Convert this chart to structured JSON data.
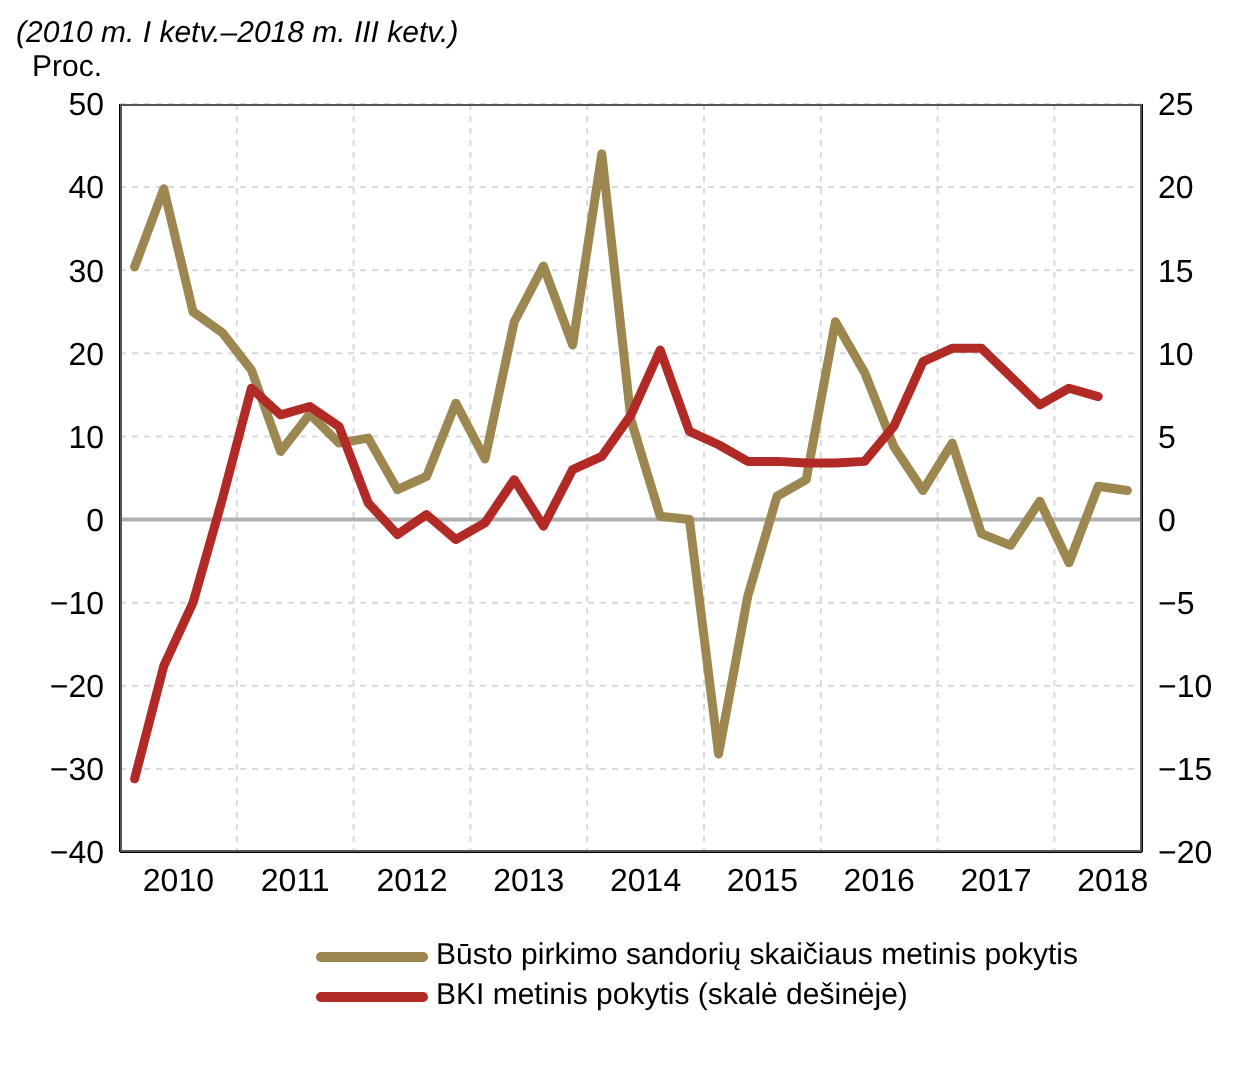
{
  "chart_data": {
    "type": "line",
    "title": "(2010 m. I ketv.–2018 m. III ketv.)",
    "ylabel": "Proc.",
    "x": [
      2010.125,
      2010.375,
      2010.625,
      2010.875,
      2011.125,
      2011.375,
      2011.625,
      2011.875,
      2012.125,
      2012.375,
      2012.625,
      2012.875,
      2013.125,
      2013.375,
      2013.625,
      2013.875,
      2014.125,
      2014.375,
      2014.625,
      2014.875,
      2015.125,
      2015.375,
      2015.625,
      2015.875,
      2016.125,
      2016.375,
      2016.625,
      2016.875,
      2017.125,
      2017.375,
      2017.625,
      2017.875,
      2018.125,
      2018.375,
      2018.625
    ],
    "series": [
      {
        "name": "Būsto pirkimo sandorių skaičiaus metinis pokytis",
        "color": "#9c8750",
        "values": [
          30.4,
          39.8,
          25,
          22.5,
          18,
          8.2,
          12.7,
          9.2,
          9.8,
          3.6,
          5.2,
          14,
          7.3,
          23.8,
          30.5,
          21,
          44,
          12,
          0.4,
          0,
          -28.2,
          -9.2,
          2.8,
          4.8,
          23.8,
          17.7,
          8.8,
          3.5,
          9.2,
          -1.7,
          -3.1,
          2.2,
          -5.2,
          4,
          3.5
        ]
      },
      {
        "name": "BKI metinis pokytis (skalė dešinėje)",
        "color": "#b22a25",
        "axis": "y2",
        "values": [
          -15.6,
          -8.8,
          -5,
          1.2,
          7.9,
          6.3,
          6.8,
          5.6,
          1,
          -0.9,
          0.3,
          -1.2,
          -0.2,
          2.4,
          -0.4,
          3,
          3.8,
          6.3,
          10.2,
          5.3,
          4.5,
          3.5,
          3.5,
          3.4,
          3.4,
          3.5,
          5.6,
          9.5,
          10.3,
          10.3,
          8.6,
          6.9,
          7.9,
          7.4,
          null
        ]
      }
    ],
    "xlim": [
      2010,
      2018.75
    ],
    "xticks": [
      {
        "value": 2010.5,
        "label": "2010"
      },
      {
        "value": 2011,
        "label": null
      },
      {
        "value": 2011.5,
        "label": "2011"
      },
      {
        "value": 2012,
        "label": null
      },
      {
        "value": 2012.5,
        "label": "2012"
      },
      {
        "value": 2013,
        "label": null
      },
      {
        "value": 2013.5,
        "label": "2013"
      },
      {
        "value": 2014,
        "label": null
      },
      {
        "value": 2014.5,
        "label": "2014"
      },
      {
        "value": 2015,
        "label": null
      },
      {
        "value": 2015.5,
        "label": "2015"
      },
      {
        "value": 2016,
        "label": null
      },
      {
        "value": 2016.5,
        "label": "2016"
      },
      {
        "value": 2017,
        "label": null
      },
      {
        "value": 2017.5,
        "label": "2017"
      },
      {
        "value": 2018,
        "label": null
      },
      {
        "value": 2018.5,
        "label": "2018"
      }
    ],
    "ylim": [
      -40,
      50
    ],
    "yticks": [
      {
        "value": -40,
        "label": "−40"
      },
      {
        "value": -30,
        "label": "−30"
      },
      {
        "value": -20,
        "label": "−20"
      },
      {
        "value": -10,
        "label": "−10"
      },
      0,
      10,
      20,
      30,
      40,
      50
    ],
    "y2lim": [
      -20,
      25
    ],
    "y2ticks": [
      {
        "value": -20,
        "label": "−20"
      },
      {
        "value": -15,
        "label": "−15"
      },
      {
        "value": -10,
        "label": "−10"
      },
      {
        "value": -5,
        "label": "−5"
      },
      0,
      5,
      10,
      15,
      20,
      25
    ],
    "ref_lines": [
      {
        "axis": "y",
        "value": 0,
        "color": "#b0b0b0"
      }
    ],
    "grid": true,
    "legend": "bottom",
    "marker": "none",
    "line_style": "solid"
  }
}
